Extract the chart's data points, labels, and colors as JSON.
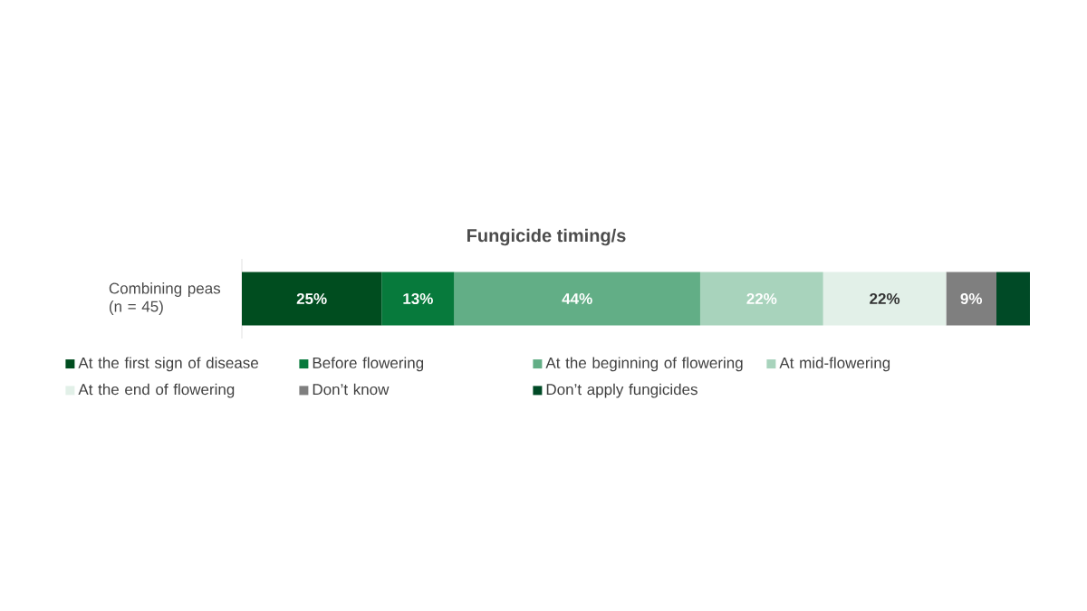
{
  "chart_data": {
    "type": "bar",
    "orientation": "horizontal",
    "stacked": true,
    "title": "Fungicide timing/s",
    "categories": [
      "Combining peas (n = 45)"
    ],
    "legend": "bottom",
    "series": [
      {
        "name": "At the first sign of disease",
        "color": "#004d1f",
        "values": [
          25
        ],
        "value_labels": [
          "25%"
        ]
      },
      {
        "name": "Before flowering",
        "color": "#077a3c",
        "values": [
          13
        ],
        "value_labels": [
          "13%"
        ]
      },
      {
        "name": "At the beginning of flowering",
        "color": "#62ae86",
        "values": [
          44
        ],
        "value_labels": [
          "44%"
        ]
      },
      {
        "name": "At mid-flowering",
        "color": "#a8d3bc",
        "values": [
          22
        ],
        "value_labels": [
          "22%"
        ]
      },
      {
        "name": "At the end of flowering",
        "color": "#e2f0e8",
        "values": [
          22
        ],
        "value_labels": [
          "22%"
        ]
      },
      {
        "name": "Don’t know",
        "color": "#7f7f7f",
        "values": [
          9
        ],
        "value_labels": [
          "9%"
        ]
      },
      {
        "name": "Don’t apply fungicides",
        "color": "#004a26",
        "values": [
          6
        ],
        "value_labels": [
          null
        ]
      }
    ]
  }
}
